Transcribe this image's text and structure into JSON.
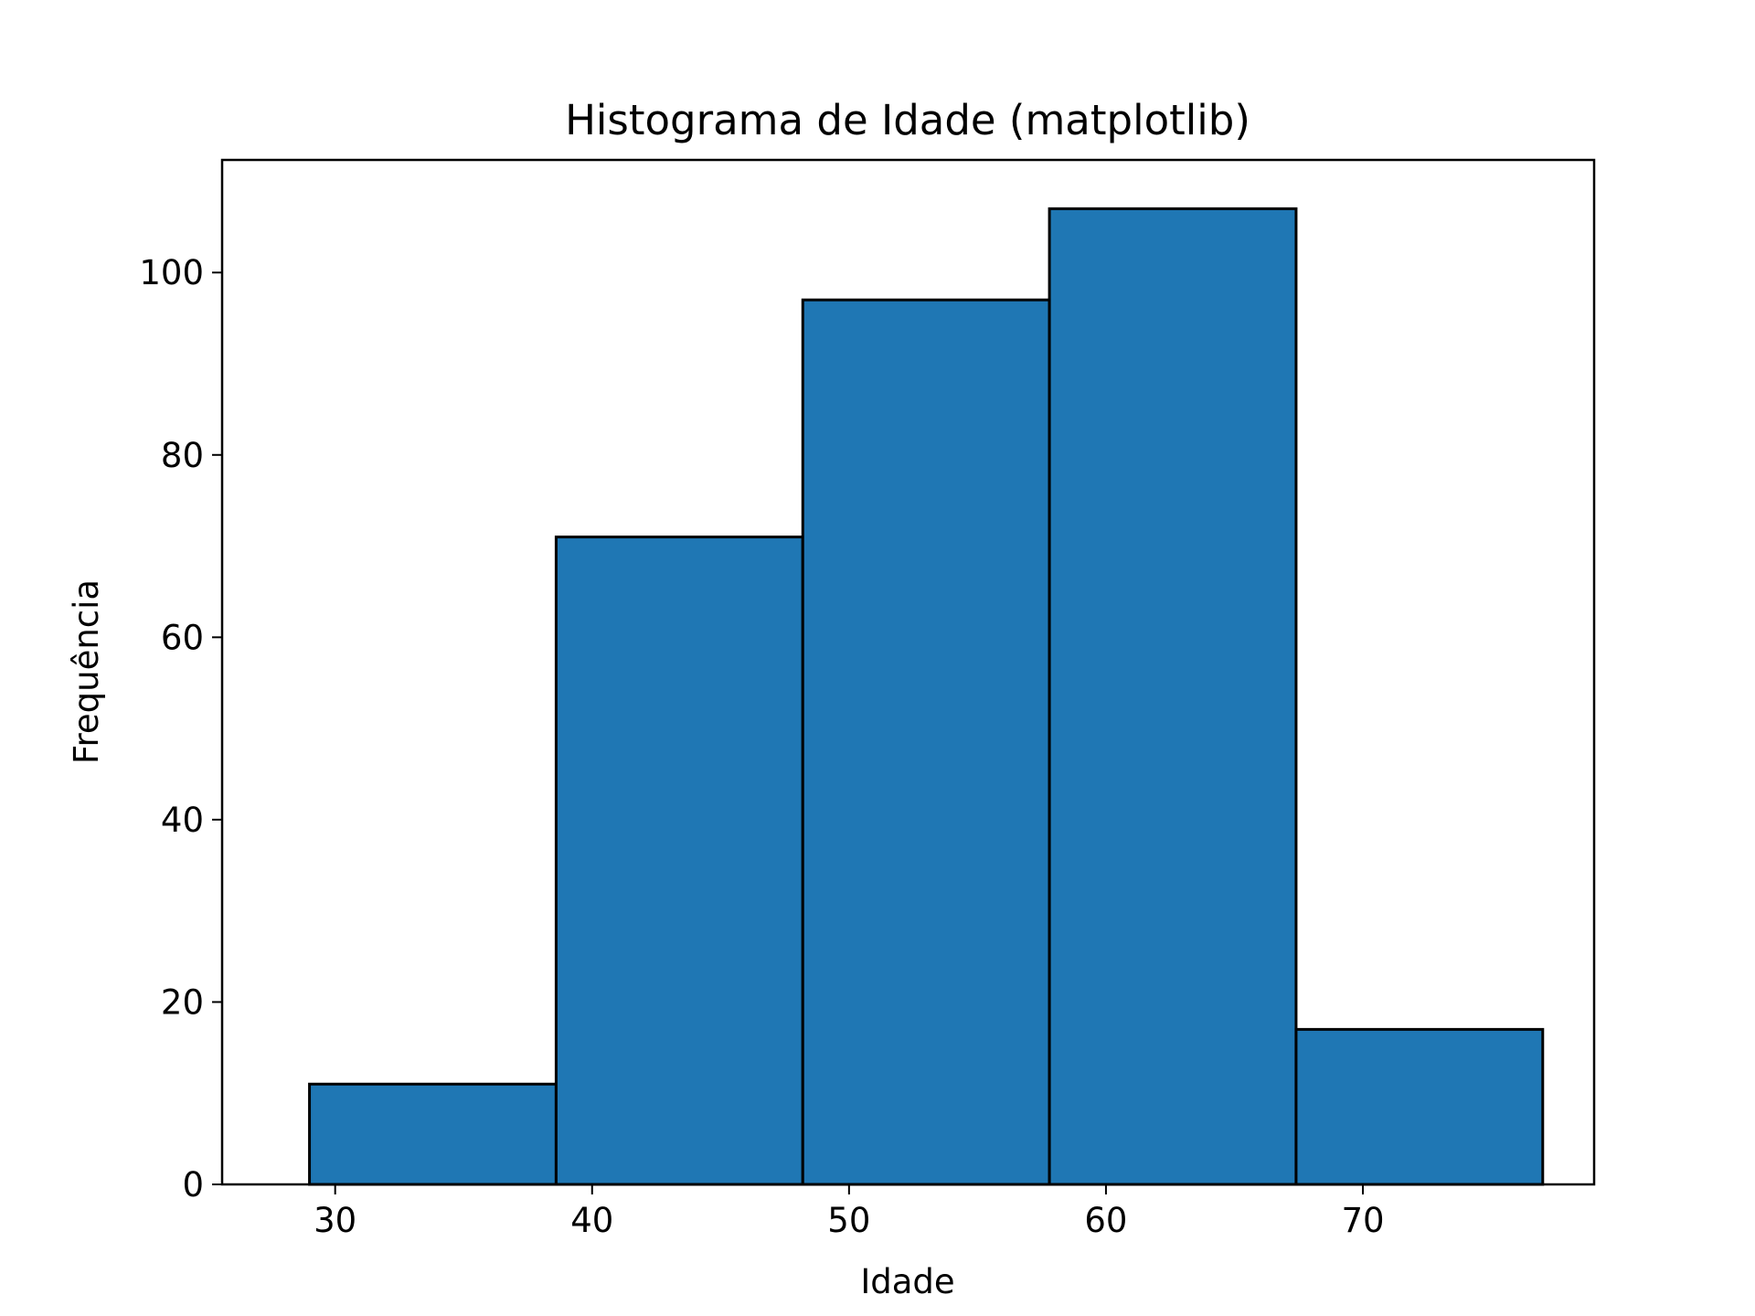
{
  "chart_data": {
    "type": "bar",
    "subtype": "histogram",
    "title": "Histograma de Idade (matplotlib)",
    "xlabel": "Idade",
    "ylabel": "Frequência",
    "bins": [
      {
        "start": 29.0,
        "end": 38.6,
        "count": 11
      },
      {
        "start": 38.6,
        "end": 48.2,
        "count": 71
      },
      {
        "start": 48.2,
        "end": 57.8,
        "count": 97
      },
      {
        "start": 57.8,
        "end": 67.4,
        "count": 107
      },
      {
        "start": 67.4,
        "end": 77.0,
        "count": 17
      }
    ],
    "xlim": [
      25.6,
      79.0
    ],
    "ylim": [
      0,
      112.35
    ],
    "xticks": [
      30,
      40,
      50,
      60,
      70
    ],
    "yticks": [
      0,
      20,
      40,
      60,
      80,
      100
    ],
    "bar_color": "#1f77b4",
    "edge_color": "#000000",
    "grid": false,
    "legend": false
  }
}
